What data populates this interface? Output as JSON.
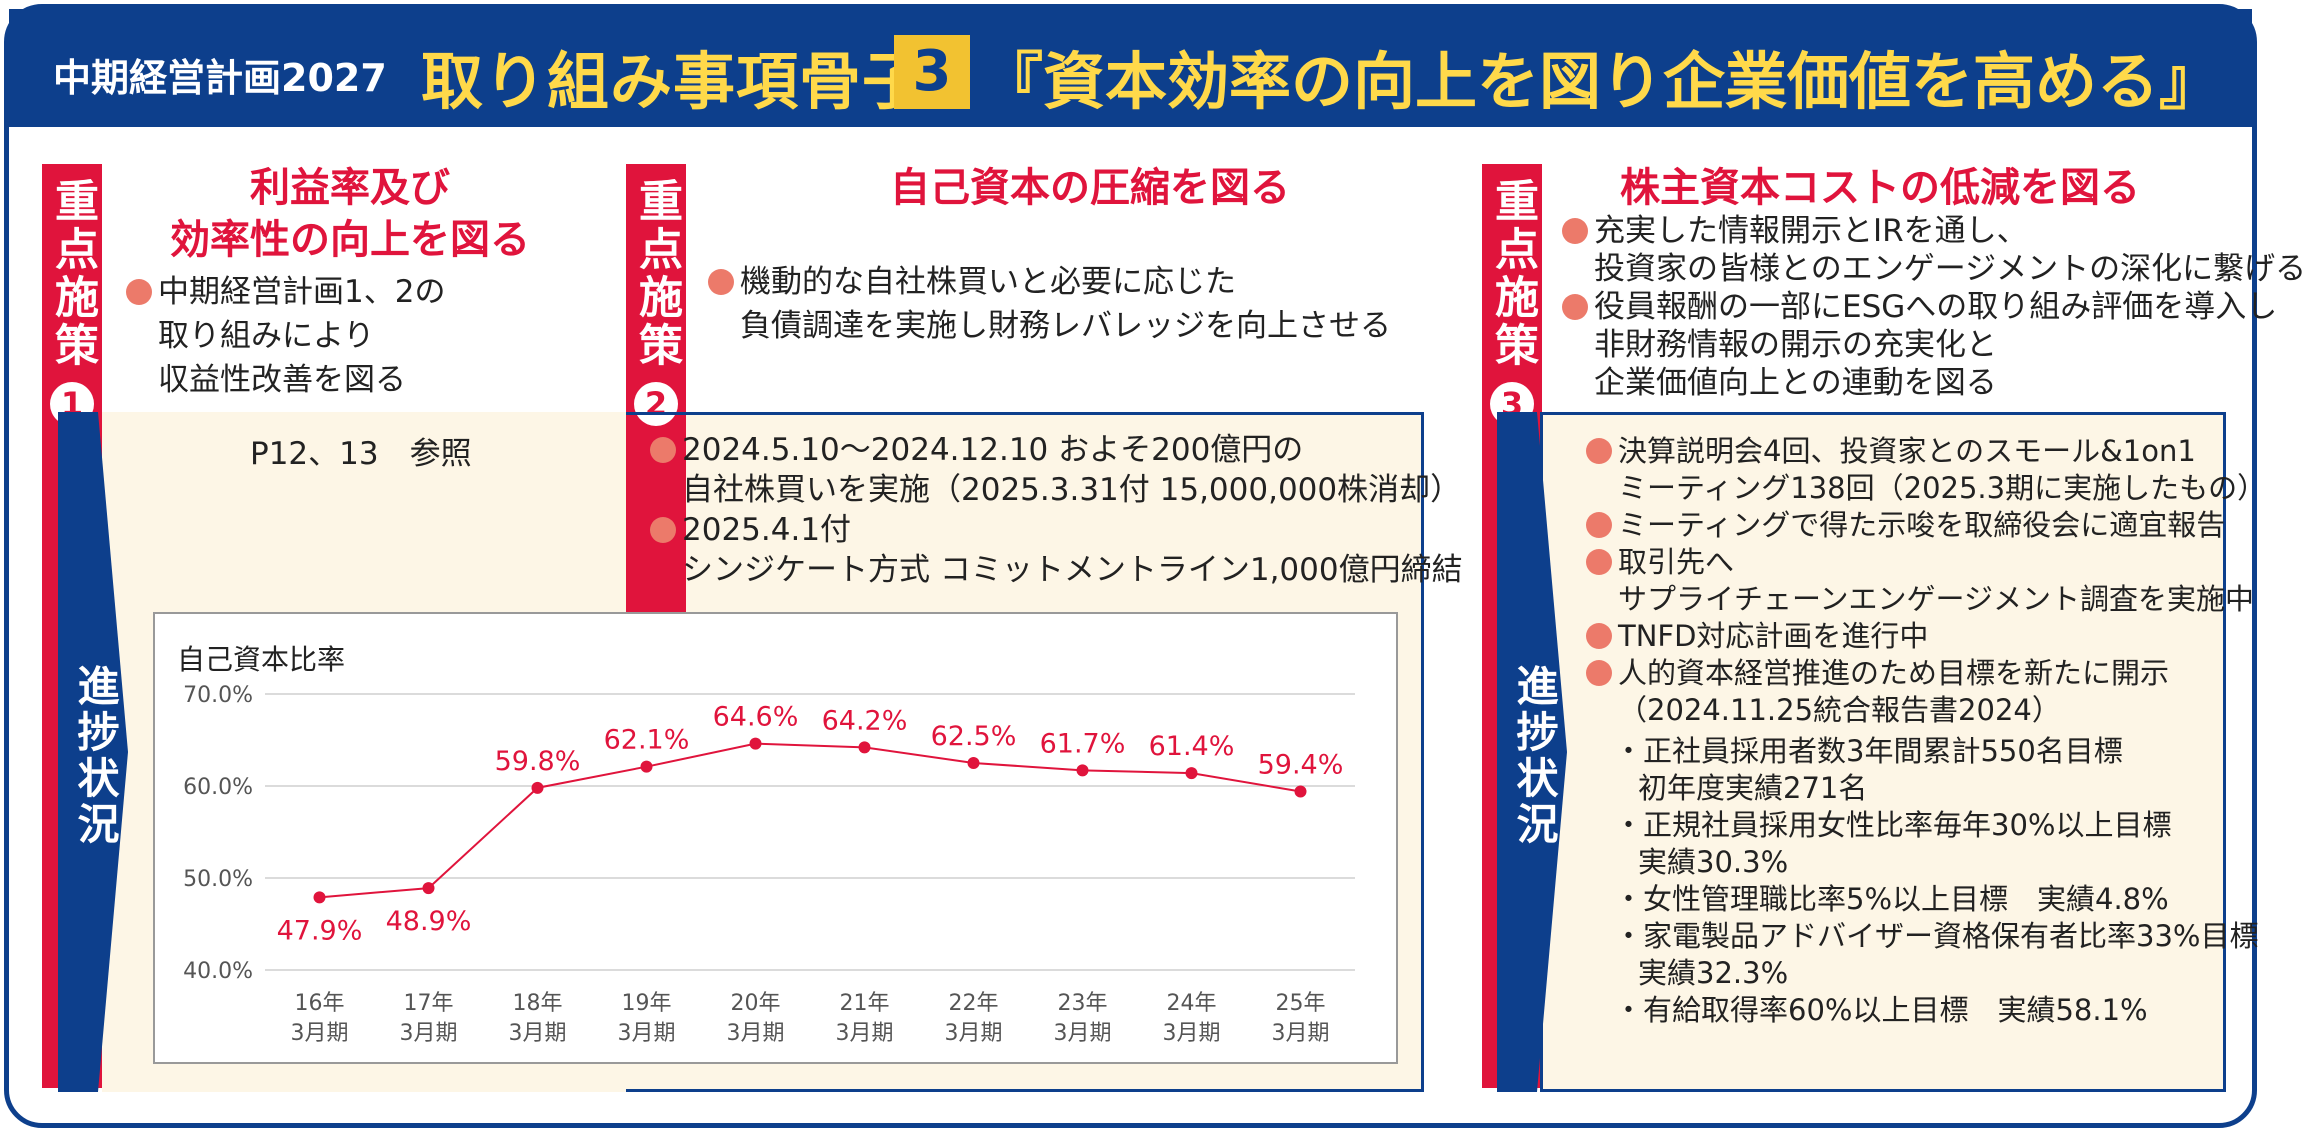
{
  "header": {
    "subtitle": "中期経営計画2027",
    "title_left": "取り組み事項骨子",
    "title_num": "3",
    "title_right": "『資本効率の向上を図り企業価値を高める』"
  },
  "columns": [
    {
      "badge": "重点施策",
      "badge_num": "1",
      "title_line1": "利益率及び",
      "title_line2": "効率性の向上を図る",
      "bullets": [
        "中期経営計画1、2の",
        "取り組みにより",
        "収益性改善を図る"
      ],
      "progress_label": "進捗状況",
      "progress_ref": "P12、13　参照"
    },
    {
      "badge": "重点施策",
      "badge_num": "2",
      "title": "自己資本の圧縮を図る",
      "bullets": [
        "機動的な自社株買いと必要に応じた",
        "負債調達を実施し財務レバレッジを向上させる"
      ],
      "progress": [
        "2024.5.10～2024.12.10 およそ200億円の",
        "自社株買いを実施（2025.3.31付 15,000,000株消却）",
        "2025.4.1付",
        "シンジケート方式 コミットメントライン1,000億円締結"
      ]
    },
    {
      "badge": "重点施策",
      "badge_num": "3",
      "title": "株主資本コストの低減を図る",
      "bullets": [
        "充実した情報開示とIRを通し、",
        "投資家の皆様とのエンゲージメントの深化に繋げる",
        "役員報酬の一部にESGへの取り組み評価を導入し",
        "非財務情報の開示の充実化と",
        "企業価値向上との連動を図る"
      ],
      "progress_label": "進捗状況",
      "progress": [
        "決算説明会4回、投資家とのスモール&1on1",
        "ミーティング138回（2025.3期に実施したもの）",
        "ミーティングで得た示唆を取締役会に適宜報告",
        "取引先へ",
        "サプライチェーンエンゲージメント調査を実施中",
        "TNFD対応計画を進行中",
        "人的資本経営推進のため目標を新たに開示",
        "（2024.11.25統合報告書2024）",
        "・正社員採用者数3年間累計550名目標",
        "初年度実績271名",
        "・正規社員採用女性比率毎年30%以上目標",
        "実績30.3%",
        "・女性管理職比率5%以上目標　実績4.8%",
        "・家電製品アドバイザー資格保有者比率33%目標",
        "実績32.3%",
        "・有給取得率60%以上目標　実績58.1%"
      ]
    }
  ],
  "chart_data": {
    "type": "line",
    "title": "自己資本比率",
    "categories": [
      "16年",
      "17年",
      "18年",
      "19年",
      "20年",
      "21年",
      "22年",
      "23年",
      "24年",
      "25年"
    ],
    "category_sub": "3月期",
    "values": [
      47.9,
      48.9,
      59.8,
      62.1,
      64.6,
      64.2,
      62.5,
      61.7,
      61.4,
      59.4
    ],
    "value_labels": [
      "47.9%",
      "48.9%",
      "59.8%",
      "62.1%",
      "64.6%",
      "64.2%",
      "62.5%",
      "61.7%",
      "61.4%",
      "59.4%"
    ],
    "ylim": [
      40,
      70
    ],
    "yticks": [
      "40.0%",
      "50.0%",
      "60.0%",
      "70.0%"
    ],
    "grid": true,
    "line_color": "#e0143c"
  }
}
